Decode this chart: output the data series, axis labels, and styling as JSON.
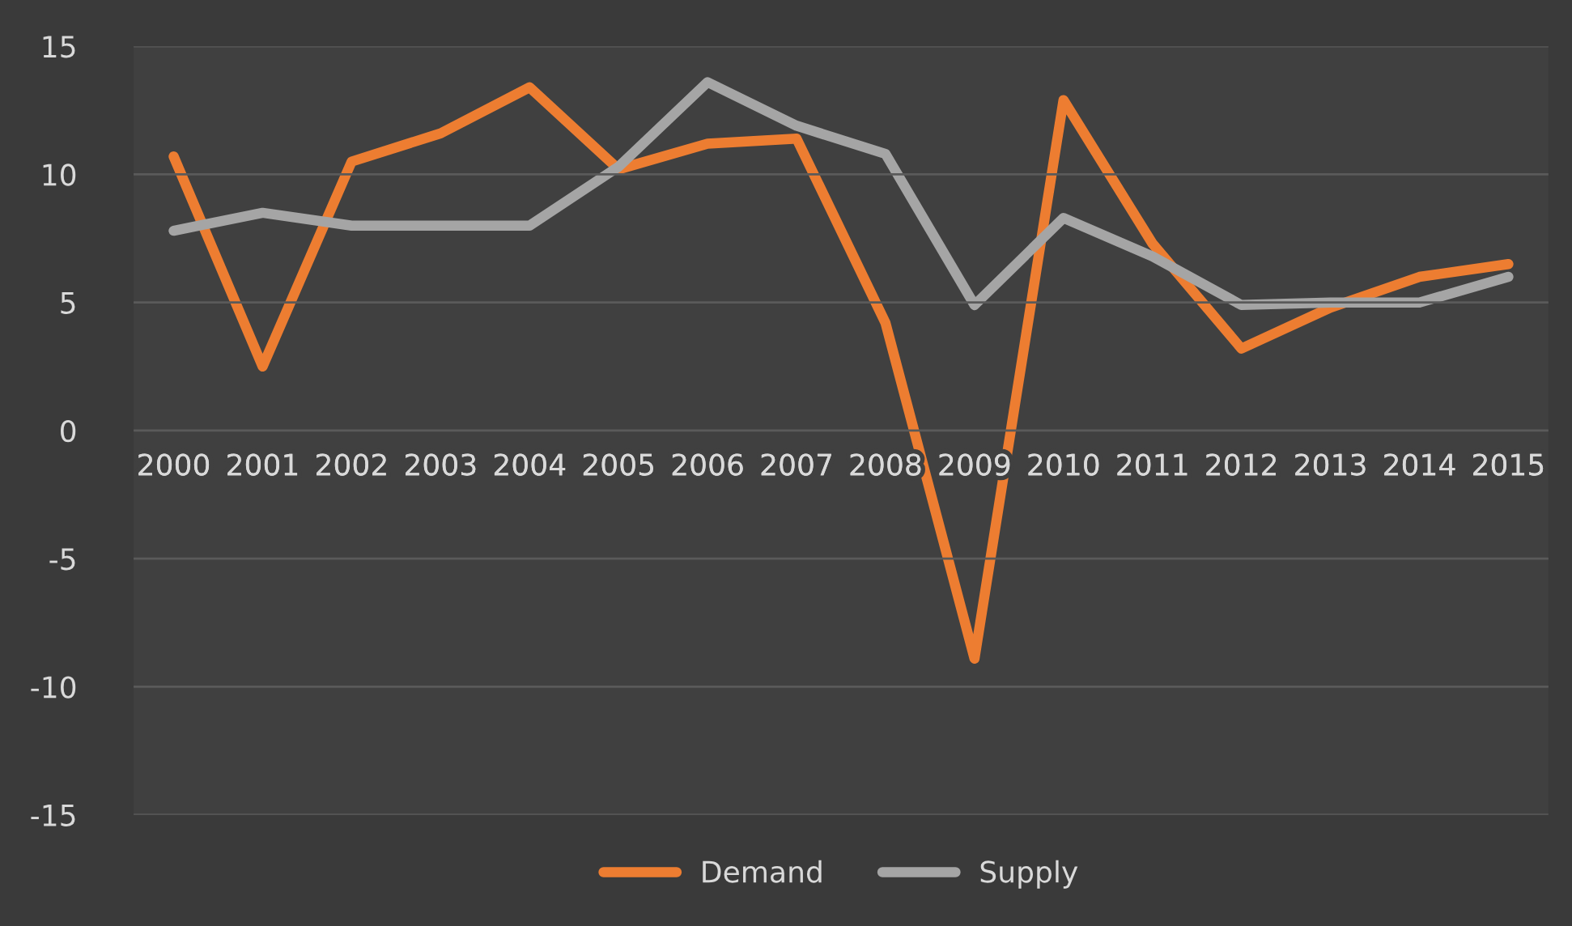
{
  "chart_data": {
    "type": "line",
    "categories": [
      "2000",
      "2001",
      "2002",
      "2003",
      "2004",
      "2005",
      "2006",
      "2007",
      "2008",
      "2009",
      "2010",
      "2011",
      "2012",
      "2013",
      "2014",
      "2015"
    ],
    "series": [
      {
        "name": "Demand",
        "color": "#ed7d31",
        "values": [
          10.7,
          2.5,
          10.5,
          11.6,
          13.4,
          10.2,
          11.2,
          11.4,
          4.2,
          -8.9,
          12.9,
          7.3,
          3.2,
          4.8,
          6.0,
          6.5
        ]
      },
      {
        "name": "Supply",
        "color": "#a5a5a5",
        "values": [
          7.8,
          8.5,
          8.0,
          8.0,
          8.0,
          10.3,
          13.6,
          11.9,
          10.8,
          4.9,
          8.3,
          6.8,
          4.9,
          5.0,
          5.0,
          6.0
        ]
      }
    ],
    "ylim": [
      -15,
      15
    ],
    "yticks": [
      -15,
      -10,
      -5,
      0,
      5,
      10,
      15
    ],
    "grid": "y",
    "legend": "bottom",
    "marker": "none",
    "line_style": "solid"
  }
}
